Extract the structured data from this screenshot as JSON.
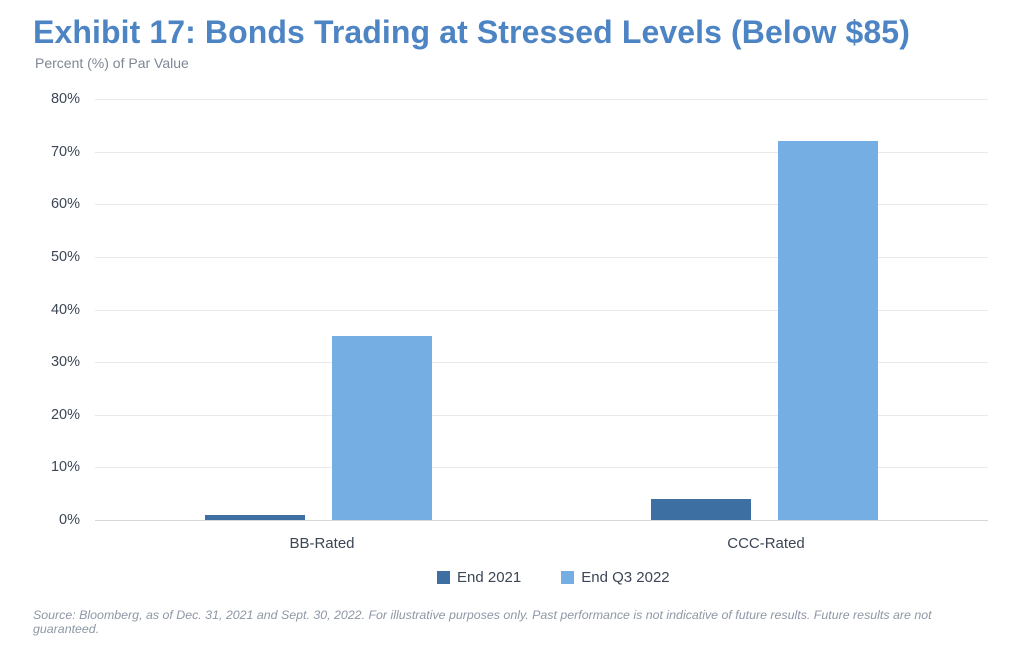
{
  "header": {
    "title": "Exhibit 17: Bonds Trading at Stressed Levels (Below $85)",
    "axis_title": "Percent (%) of Par Value"
  },
  "chart_data": {
    "type": "bar",
    "title": "Exhibit 17: Bonds Trading at Stressed Levels (Below $85)",
    "ylabel": "Percent (%) of Par Value",
    "xlabel": "",
    "categories": [
      "BB-Rated",
      "CCC-Rated"
    ],
    "series": [
      {
        "name": "End 2021",
        "color": "#3D6FA3",
        "values": [
          1,
          4
        ]
      },
      {
        "name": "End Q3 2022",
        "color": "#74AEE2",
        "values": [
          35,
          72
        ]
      }
    ],
    "ylim": [
      0,
      80
    ],
    "ytick_step": 10,
    "ytick_suffix": "%",
    "grid": "horizontal",
    "legend_position": "bottom-center"
  },
  "footer": {
    "source": "Source: Bloomberg, as of Dec. 31, 2021 and Sept. 30, 2022. For illustrative purposes only. Past performance is not indicative of future results. Future results are not guaranteed."
  },
  "colors": {
    "title_text": "#4D84C4",
    "axis_text": "#3C4656",
    "muted_text": "#7E8795",
    "gridline": "#E7E9EB",
    "baseline": "#D6D9DC"
  }
}
